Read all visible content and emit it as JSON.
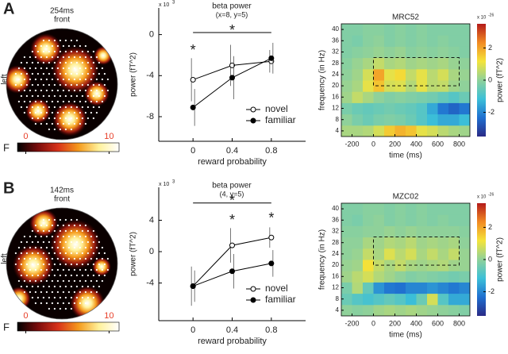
{
  "panel_labels": [
    "A",
    "B"
  ],
  "chart_data": [
    {
      "type": "topomap",
      "title": "254ms",
      "subtitle": "front",
      "side_label": "left",
      "colorbar_label": "F",
      "clim": [
        -1,
        11.2
      ],
      "cticks": [
        0,
        10
      ],
      "tick_color": "#e8402a",
      "colormap": [
        "#000000",
        "#7a0c0c",
        "#d8321a",
        "#f59a1c",
        "#fff19a",
        "#ffffff"
      ]
    },
    {
      "type": "line",
      "title": "beta power",
      "subtitle": "(x=8, y=5)",
      "y_scale_label": "x 10",
      "y_scale_exponent": "3",
      "xlabel": "reward probability",
      "ylabel": "power (fT^2)",
      "x": [
        0,
        0.4,
        0.8
      ],
      "xlim": [
        -0.35,
        1.15
      ],
      "xticks": [
        0,
        0.4,
        0.8
      ],
      "ylim": [
        -10.4,
        2.6
      ],
      "yticks": [
        -8,
        -4,
        0
      ],
      "series": [
        {
          "name": "novel",
          "color": "#000000",
          "marker": "open",
          "values": [
            -4.4,
            -3.0,
            -2.6
          ],
          "errors": [
            2.1,
            2.0,
            1.1
          ]
        },
        {
          "name": "familiar",
          "color": "#000000",
          "marker": "filled",
          "values": [
            -7.1,
            -4.2,
            -2.3
          ],
          "errors": [
            1.8,
            2.1,
            1.5
          ]
        }
      ],
      "legend": "lower right",
      "significance_bar": {
        "x": [
          0,
          0.8
        ],
        "y": 0.2,
        "label": "*"
      },
      "annotations": [
        {
          "text": "*",
          "x": 0,
          "y": -1.6
        }
      ]
    },
    {
      "type": "heatmap",
      "title": "MRC52",
      "xlabel": "time (ms)",
      "ylabel": "frequency (in Hz)",
      "x": [
        -250,
        -150,
        -50,
        50,
        150,
        250,
        350,
        450,
        550,
        650,
        750,
        850
      ],
      "y": [
        4,
        8,
        12,
        16,
        20,
        24,
        28,
        32,
        36,
        40
      ],
      "z": [
        [
          0.3,
          0.3,
          0.4,
          0.8,
          1.5,
          1.8,
          1.6,
          1.0,
          0.8,
          0.5,
          0.3,
          0.2
        ],
        [
          0,
          -0.3,
          -0.5,
          -0.3,
          -0.2,
          -0.3,
          -0.5,
          -0.8,
          -1.2,
          -1.5,
          -1.5,
          -1.2
        ],
        [
          -0.3,
          -0.5,
          -0.6,
          -0.5,
          -0.4,
          -0.5,
          -0.6,
          -0.8,
          -1.5,
          -2.2,
          -2.5,
          -2.2
        ],
        [
          0.2,
          0.6,
          0.3,
          0,
          -0.2,
          -0.1,
          -0.2,
          -0.3,
          -0.4,
          -0.6,
          -0.8,
          -0.5
        ],
        [
          0.1,
          0.3,
          1.0,
          1.6,
          0.8,
          0.9,
          0.4,
          1.0,
          0.5,
          0.6,
          0.2,
          0
        ],
        [
          0,
          0.2,
          0.8,
          2.0,
          1.0,
          1.3,
          0.6,
          1.0,
          0.5,
          0.8,
          0.3,
          0.1
        ],
        [
          -0.1,
          0.1,
          0.3,
          0.6,
          0.3,
          0.4,
          0.2,
          0.3,
          0.2,
          0.3,
          0.1,
          0
        ],
        [
          -0.2,
          -0.1,
          0,
          0.1,
          0,
          0.1,
          -0.1,
          0,
          -0.1,
          0,
          -0.1,
          -0.2
        ],
        [
          -0.2,
          -0.3,
          -0.1,
          0,
          -0.2,
          -0.1,
          -0.2,
          -0.1,
          -0.2,
          -0.1,
          -0.2,
          -0.2
        ],
        [
          -0.2,
          -0.2,
          -0.1,
          -0.1,
          -0.2,
          -0.1,
          -0.2,
          -0.1,
          -0.2,
          -0.2,
          -0.2,
          -0.2
        ]
      ],
      "xlim": [
        -300,
        900
      ],
      "xticks": [
        -200,
        0,
        200,
        400,
        600,
        800
      ],
      "ylim": [
        2,
        42
      ],
      "yticks": [
        4,
        8,
        12,
        16,
        20,
        24,
        28,
        32,
        36,
        40
      ],
      "colorbar_label": "power (fT^2)",
      "colorbar_scale_label": "x 10",
      "colorbar_scale_exponent": "-26",
      "clim": [
        -3.5,
        3.5
      ],
      "cticks": [
        -2,
        0,
        2
      ],
      "colormap": [
        "#2a2a86",
        "#1f6fd0",
        "#3cc0d8",
        "#8fd19a",
        "#f4e43a",
        "#f28a22",
        "#b41a1a"
      ],
      "box": {
        "x": [
          0,
          800
        ],
        "y": [
          20,
          30
        ]
      }
    },
    {
      "type": "topomap",
      "title": "142ms",
      "subtitle": "front",
      "side_label": "left",
      "colorbar_label": "F",
      "clim": [
        -1,
        11.2
      ],
      "cticks": [
        0,
        10
      ],
      "tick_color": "#e8402a",
      "colormap": [
        "#000000",
        "#7a0c0c",
        "#d8321a",
        "#f59a1c",
        "#fff19a",
        "#ffffff"
      ]
    },
    {
      "type": "line",
      "title": "beta power",
      "subtitle": "(4, y=5)",
      "y_scale_label": "x 10",
      "y_scale_exponent": "3",
      "xlabel": "reward probability",
      "ylabel": "power (fT^2)",
      "x": [
        0,
        0.4,
        0.8
      ],
      "xlim": [
        -0.35,
        1.15
      ],
      "xticks": [
        0,
        0.4,
        0.8
      ],
      "ylim": [
        -8.8,
        8.2
      ],
      "yticks": [
        -4,
        0,
        4
      ],
      "series": [
        {
          "name": "novel",
          "color": "#000000",
          "marker": "open",
          "values": [
            -4.4,
            0.8,
            1.8
          ],
          "errors": [
            2.5,
            2.2,
            1.3
          ]
        },
        {
          "name": "familiar",
          "color": "#000000",
          "marker": "filled",
          "values": [
            -4.4,
            -2.5,
            -1.5
          ],
          "errors": [
            2.0,
            2.2,
            1.7
          ]
        }
      ],
      "legend": "lower right",
      "significance_bar": {
        "x": [
          0,
          0.8
        ],
        "y": 6.2,
        "label": "*"
      },
      "annotations": [
        {
          "text": "*",
          "x": 0.4,
          "y": 3.9
        },
        {
          "text": "*",
          "x": 0.8,
          "y": 4.2
        }
      ]
    },
    {
      "type": "heatmap",
      "title": "MZC02",
      "xlabel": "time (ms)",
      "ylabel": "frequency (in Hz)",
      "x": [
        -250,
        -150,
        -50,
        50,
        150,
        250,
        350,
        450,
        550,
        650,
        750,
        850
      ],
      "y": [
        4,
        8,
        12,
        16,
        20,
        24,
        28,
        32,
        36,
        40
      ],
      "z": [
        [
          0,
          -0.1,
          0,
          0.2,
          0.3,
          0.2,
          0.3,
          0.2,
          0.1,
          0,
          -0.1,
          -0.2
        ],
        [
          -0.5,
          -0.8,
          -1.0,
          -0.8,
          -0.6,
          -0.8,
          -1.2,
          -0.5,
          0.8,
          -0.8,
          -1.5,
          -1.5
        ],
        [
          -0.3,
          0.4,
          -0.6,
          -1.8,
          -2.2,
          -2.3,
          -2.0,
          -2.0,
          -1.8,
          -2.0,
          -2.2,
          -2.0
        ],
        [
          0.2,
          0.5,
          0.8,
          0.4,
          0.2,
          0,
          -0.2,
          -0.1,
          -0.2,
          -0.3,
          -0.4,
          -0.3
        ],
        [
          0.1,
          0.2,
          1.2,
          0.6,
          0.3,
          0.6,
          0.3,
          0.2,
          0.3,
          0.4,
          0.2,
          0.1
        ],
        [
          0,
          0.1,
          0.6,
          0.3,
          0.9,
          0.5,
          0.8,
          0.3,
          0.6,
          0.3,
          0.6,
          0.1
        ],
        [
          0,
          0,
          0.3,
          0.2,
          0.4,
          0.3,
          0.5,
          0.2,
          0.3,
          0.2,
          0.3,
          0
        ],
        [
          -0.1,
          -0.1,
          0,
          0,
          0.1,
          0,
          0.1,
          0,
          0,
          0,
          0,
          -0.1
        ],
        [
          -0.2,
          -0.3,
          -0.1,
          0,
          -0.2,
          -0.1,
          -0.2,
          -0.1,
          -0.2,
          -0.1,
          -0.2,
          -0.2
        ],
        [
          -0.2,
          -0.2,
          -0.1,
          -0.1,
          -0.2,
          -0.1,
          -0.2,
          -0.1,
          -0.2,
          -0.2,
          -0.2,
          -0.2
        ]
      ],
      "xlim": [
        -300,
        900
      ],
      "xticks": [
        -200,
        0,
        200,
        400,
        600,
        800
      ],
      "ylim": [
        2,
        42
      ],
      "yticks": [
        4,
        8,
        12,
        16,
        20,
        24,
        28,
        32,
        36,
        40
      ],
      "colorbar_label": "power (fT^2)",
      "colorbar_scale_label": "x 10",
      "colorbar_scale_exponent": "-26",
      "clim": [
        -3.5,
        3.5
      ],
      "cticks": [
        -2,
        0,
        2
      ],
      "colormap": [
        "#2a2a86",
        "#1f6fd0",
        "#3cc0d8",
        "#8fd19a",
        "#f4e43a",
        "#f28a22",
        "#b41a1a"
      ],
      "box": {
        "x": [
          0,
          800
        ],
        "y": [
          20,
          30
        ]
      }
    }
  ]
}
